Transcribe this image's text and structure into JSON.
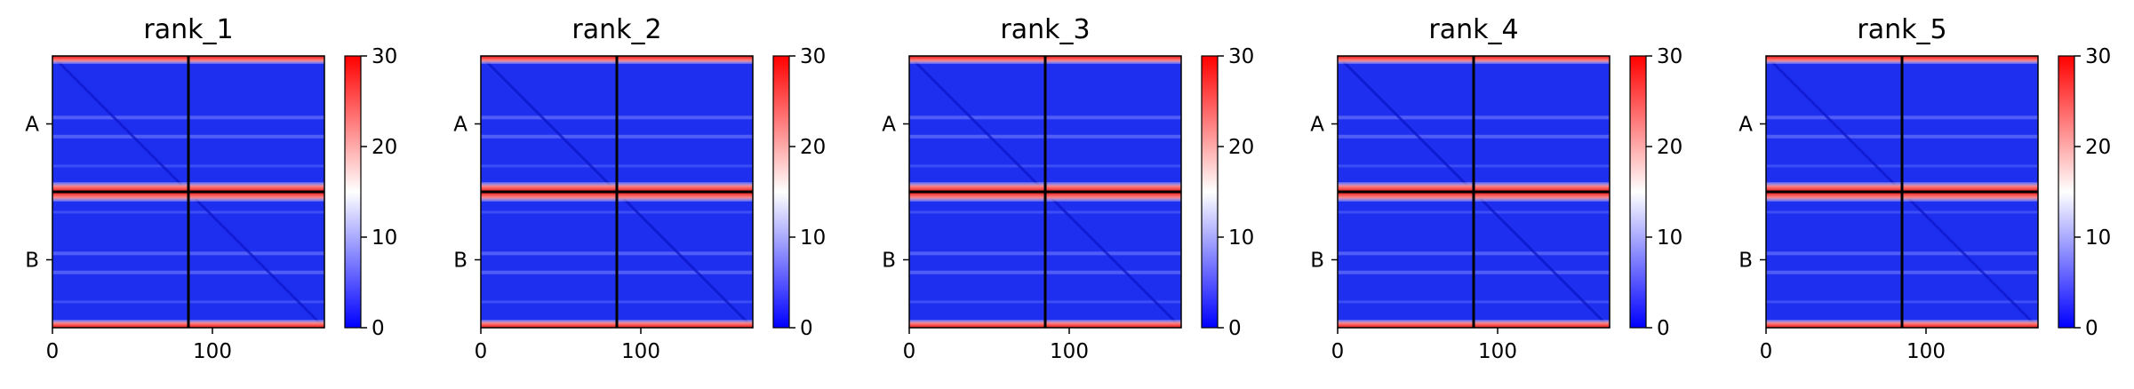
{
  "chart_data": [
    {
      "type": "heatmap",
      "title": "rank_1",
      "x_ticks": [
        0,
        100
      ],
      "xlim": [
        0,
        170
      ],
      "y_tick_labels": [
        "A",
        "B"
      ],
      "chain_boundary": 85,
      "colorbar": {
        "min": 0,
        "max": 30,
        "ticks": [
          0,
          10,
          20,
          30
        ],
        "colors": [
          "#0000ff",
          "#ffffff",
          "#ff0000"
        ]
      }
    },
    {
      "type": "heatmap",
      "title": "rank_2",
      "x_ticks": [
        0,
        100
      ],
      "xlim": [
        0,
        170
      ],
      "y_tick_labels": [
        "A",
        "B"
      ],
      "chain_boundary": 85,
      "colorbar": {
        "min": 0,
        "max": 30,
        "ticks": [
          0,
          10,
          20,
          30
        ],
        "colors": [
          "#0000ff",
          "#ffffff",
          "#ff0000"
        ]
      }
    },
    {
      "type": "heatmap",
      "title": "rank_3",
      "x_ticks": [
        0,
        100
      ],
      "xlim": [
        0,
        170
      ],
      "y_tick_labels": [
        "A",
        "B"
      ],
      "chain_boundary": 85,
      "colorbar": {
        "min": 0,
        "max": 30,
        "ticks": [
          0,
          10,
          20,
          30
        ],
        "colors": [
          "#0000ff",
          "#ffffff",
          "#ff0000"
        ]
      }
    },
    {
      "type": "heatmap",
      "title": "rank_4",
      "x_ticks": [
        0,
        100
      ],
      "xlim": [
        0,
        170
      ],
      "y_tick_labels": [
        "A",
        "B"
      ],
      "chain_boundary": 85,
      "colorbar": {
        "min": 0,
        "max": 30,
        "ticks": [
          0,
          10,
          20,
          30
        ],
        "colors": [
          "#0000ff",
          "#ffffff",
          "#ff0000"
        ]
      }
    },
    {
      "type": "heatmap",
      "title": "rank_5",
      "x_ticks": [
        0,
        100
      ],
      "xlim": [
        0,
        170
      ],
      "y_tick_labels": [
        "A",
        "B"
      ],
      "chain_boundary": 85,
      "colorbar": {
        "min": 0,
        "max": 30,
        "ticks": [
          0,
          10,
          20,
          30
        ],
        "colors": [
          "#0000ff",
          "#ffffff",
          "#ff0000"
        ]
      }
    }
  ]
}
